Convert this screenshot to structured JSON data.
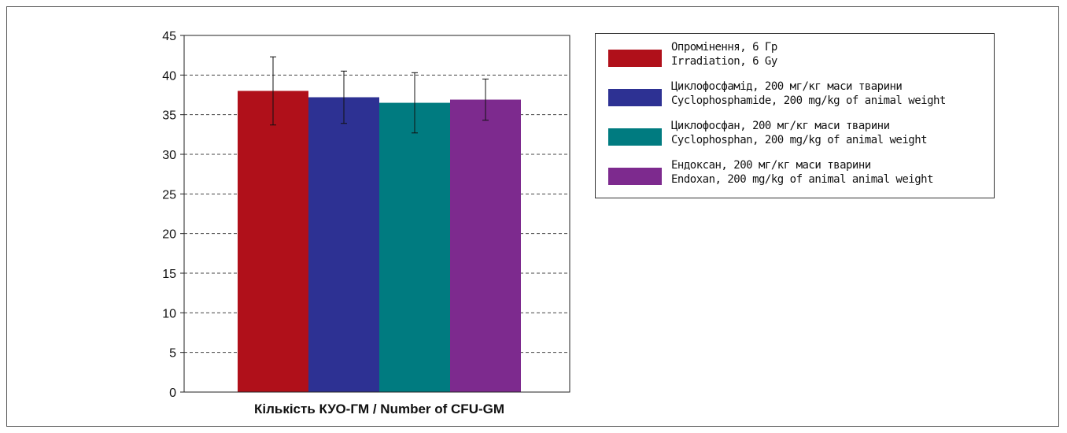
{
  "chart_data": {
    "type": "bar",
    "title": "",
    "xlabel": "Кількість КУО-ГМ / Number of CFU-GM",
    "ylabel": "",
    "ylim": [
      0,
      45
    ],
    "yticks": [
      "0",
      "5",
      "10",
      "15",
      "20",
      "25",
      "30",
      "35",
      "40",
      "45"
    ],
    "grid": "horizontal dashed",
    "legend_placement": "right",
    "series": [
      {
        "name": "Опромінення, 6 Гр",
        "name_en": "Irradiation, 6 Gy",
        "value": 38.0,
        "error": 4.3,
        "color": "#b0101a"
      },
      {
        "name": "Циклофосфамід, 200 мг/кг маси тварини",
        "name_en": "Cyclophosphamide, 200 mg/kg of animal weight",
        "value": 37.2,
        "error": 3.3,
        "color": "#2d3193"
      },
      {
        "name": "Циклофосфан, 200 мг/кг маси тварини",
        "name_en": "Cyclophosphan, 200 mg/kg of animal weight",
        "value": 36.5,
        "error": 3.8,
        "color": "#007b80"
      },
      {
        "name": "Ендоксан, 200 мг/кг маси тварини",
        "name_en": "Endoxan, 200 mg/kg of animal animal weight",
        "value": 36.9,
        "error": 2.6,
        "color": "#7d2a8e"
      }
    ]
  }
}
